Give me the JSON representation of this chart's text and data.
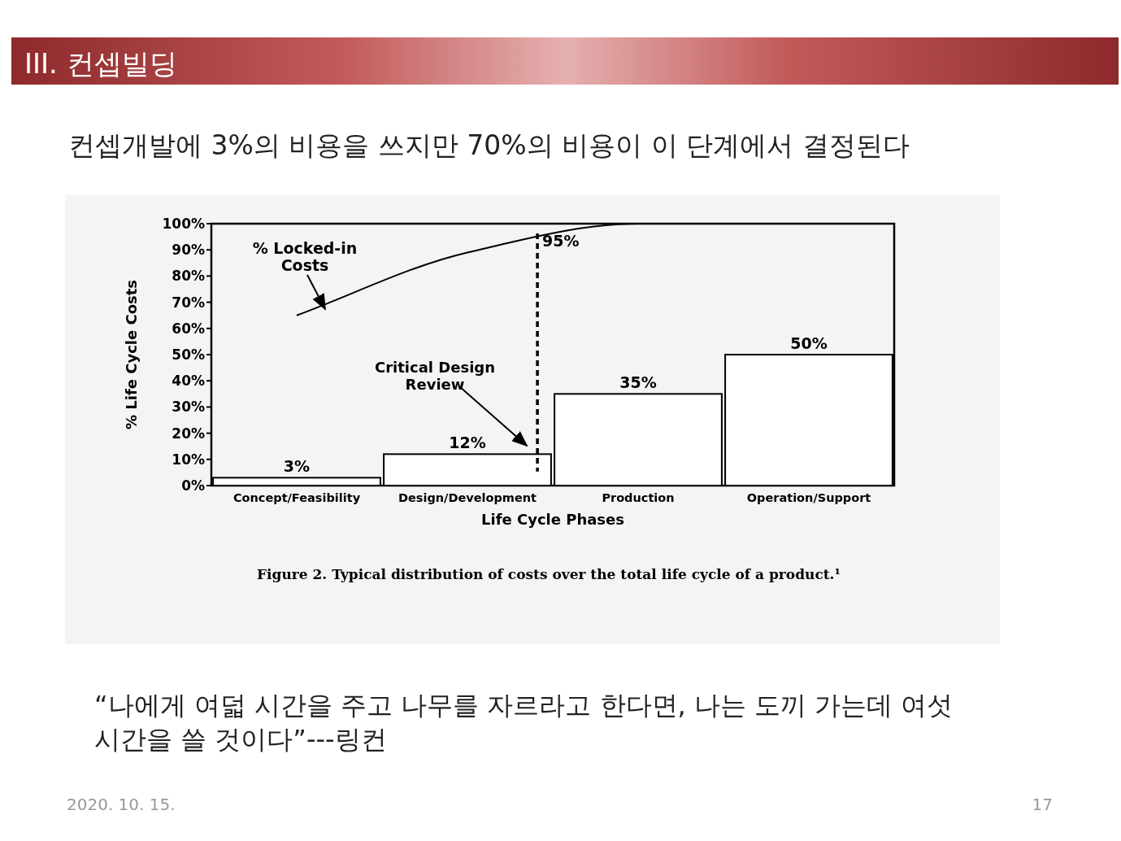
{
  "chart_data": {
    "type": "bar",
    "title": "III. 컨셉빌딩",
    "subtitle": "컨셉개발에 3%의 비용을 쓰지만 70%의 비용이 이 단계에서 결정된다",
    "xlabel": "Life Cycle Phases",
    "ylabel": "% Life Cycle Costs",
    "categories": [
      "Concept/Feasibility",
      "Design/Development",
      "Production",
      "Operation/Support"
    ],
    "series": [
      {
        "color": "#ffffff",
        "values": [
          3,
          12,
          35,
          50
        ],
        "value_labels": [
          "3%",
          "12%",
          "35%",
          "50%"
        ]
      },
      {
        "type": "line",
        "name": "% Locked-in Costs",
        "color": "#000000",
        "values": [
          65,
          89,
          100,
          100
        ]
      }
    ],
    "ref_lines": [
      {
        "axis": "x",
        "value": "Design/Development",
        "line_style": "dashed",
        "color": "#000000"
      }
    ],
    "ylim": [
      0,
      100
    ],
    "yticks": [
      {
        "value": 0,
        "label": "0%"
      },
      {
        "value": 10,
        "label": "10%"
      },
      {
        "value": 20,
        "label": "20%"
      },
      {
        "value": 30,
        "label": "30%"
      },
      {
        "value": 40,
        "label": "40%"
      },
      {
        "value": 50,
        "label": "50%"
      },
      {
        "value": 60,
        "label": "60%"
      },
      {
        "value": 70,
        "label": "70%"
      },
      {
        "value": 80,
        "label": "80%"
      },
      {
        "value": 90,
        "label": "90%"
      },
      {
        "value": 100,
        "label": "100%"
      }
    ],
    "annotations": [
      "95%",
      "Critical Design Review",
      "Figure 2.  Typical distribution of costs over the total life cycle of a product.¹",
      "“나에게 여덟 시간을 주고 나무를 자르라고 한다면, 나는 도끼 가는데 여섯 시간을 쓸 것이다”---링컨",
      "2020. 10. 15.",
      "17"
    ],
    "grid": false,
    "legend": false
  }
}
